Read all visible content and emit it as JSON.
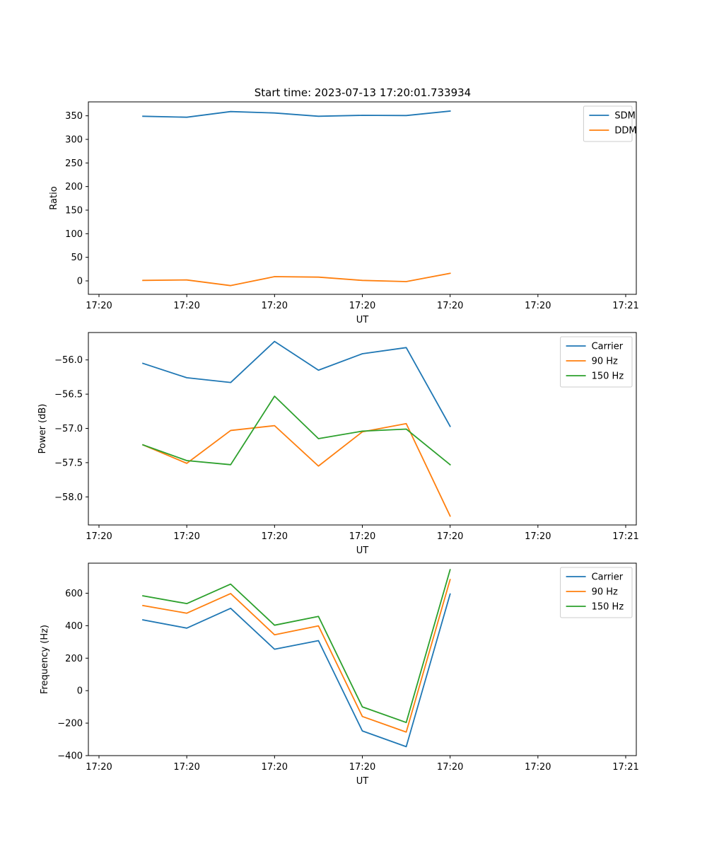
{
  "title": "Start time: 2023-07-13 17:20:01.733934",
  "colors": {
    "blue": "#1f77b4",
    "orange": "#ff7f0e",
    "green": "#2ca02c"
  },
  "chart_data": [
    {
      "type": "line",
      "title": "Start time: 2023-07-13 17:20:01.733934",
      "xlabel": "UT",
      "ylabel": "Ratio",
      "xlim": [
        0,
        6
      ],
      "ylim": [
        -28.5,
        379.5
      ],
      "x": [
        0.5,
        1.0,
        1.5,
        2.0,
        2.5,
        3.0,
        3.5,
        4.0
      ],
      "xticks": [
        0,
        1,
        2,
        3,
        4,
        5,
        6
      ],
      "xtick_labels": [
        "17:20",
        "17:20",
        "17:20",
        "17:20",
        "17:20",
        "17:20",
        "17:21"
      ],
      "yticks": [
        0,
        50,
        100,
        150,
        200,
        250,
        300,
        350
      ],
      "ytick_labels": [
        "0",
        "50",
        "100",
        "150",
        "200",
        "250",
        "300",
        "350"
      ],
      "legend_position": "upper-right",
      "series": [
        {
          "name": "SDM",
          "color": "#1f77b4",
          "values": [
            349,
            347,
            359,
            356,
            349,
            351,
            350.5,
            360
          ]
        },
        {
          "name": "DDM",
          "color": "#ff7f0e",
          "values": [
            1,
            2,
            -10,
            9,
            8,
            1,
            -1.5,
            16
          ]
        }
      ]
    },
    {
      "type": "line",
      "title": "",
      "xlabel": "UT",
      "ylabel": "Power (dB)",
      "xlim": [
        0,
        6
      ],
      "ylim": [
        -58.41,
        -55.6
      ],
      "x": [
        0.5,
        1.0,
        1.5,
        2.0,
        2.5,
        3.0,
        3.5,
        4.0
      ],
      "xticks": [
        0,
        1,
        2,
        3,
        4,
        5,
        6
      ],
      "xtick_labels": [
        "17:20",
        "17:20",
        "17:20",
        "17:20",
        "17:20",
        "17:20",
        "17:21"
      ],
      "yticks": [
        -58.0,
        -57.5,
        -57.0,
        -56.5,
        -56.0
      ],
      "ytick_labels": [
        "−58.0",
        "−57.5",
        "−57.0",
        "−56.5",
        "−56.0"
      ],
      "legend_position": "upper-right",
      "series": [
        {
          "name": "Carrier",
          "color": "#1f77b4",
          "values": [
            -56.05,
            -56.26,
            -56.33,
            -55.73,
            -56.15,
            -55.91,
            -55.82,
            -56.97
          ]
        },
        {
          "name": "90 Hz",
          "color": "#ff7f0e",
          "values": [
            -57.24,
            -57.51,
            -57.03,
            -56.96,
            -57.55,
            -57.05,
            -56.93,
            -58.28
          ]
        },
        {
          "name": "150 Hz",
          "color": "#2ca02c",
          "values": [
            -57.24,
            -57.47,
            -57.53,
            -56.53,
            -57.15,
            -57.04,
            -57.01,
            -57.53
          ]
        }
      ]
    },
    {
      "type": "line",
      "title": "",
      "xlabel": "UT",
      "ylabel": "Frequency (Hz)",
      "xlim": [
        0,
        6
      ],
      "ylim": [
        -400,
        785
      ],
      "x": [
        0.5,
        1.0,
        1.5,
        2.0,
        2.5,
        3.0,
        3.5,
        4.0
      ],
      "xticks": [
        0,
        1,
        2,
        3,
        4,
        5,
        6
      ],
      "xtick_labels": [
        "17:20",
        "17:20",
        "17:20",
        "17:20",
        "17:20",
        "17:20",
        "17:21"
      ],
      "yticks": [
        -400,
        -200,
        0,
        200,
        400,
        600
      ],
      "ytick_labels": [
        "−400",
        "−200",
        "0",
        "200",
        "400",
        "600"
      ],
      "legend_position": "upper-right",
      "series": [
        {
          "name": "Carrier",
          "color": "#1f77b4",
          "values": [
            436,
            385,
            507,
            255,
            308,
            -248,
            -345,
            595
          ]
        },
        {
          "name": "90 Hz",
          "color": "#ff7f0e",
          "values": [
            524,
            477,
            598,
            344,
            399,
            -159,
            -255,
            684
          ]
        },
        {
          "name": "150 Hz",
          "color": "#2ca02c",
          "values": [
            584,
            536,
            656,
            403,
            457,
            -100,
            -196,
            745
          ]
        }
      ]
    }
  ]
}
